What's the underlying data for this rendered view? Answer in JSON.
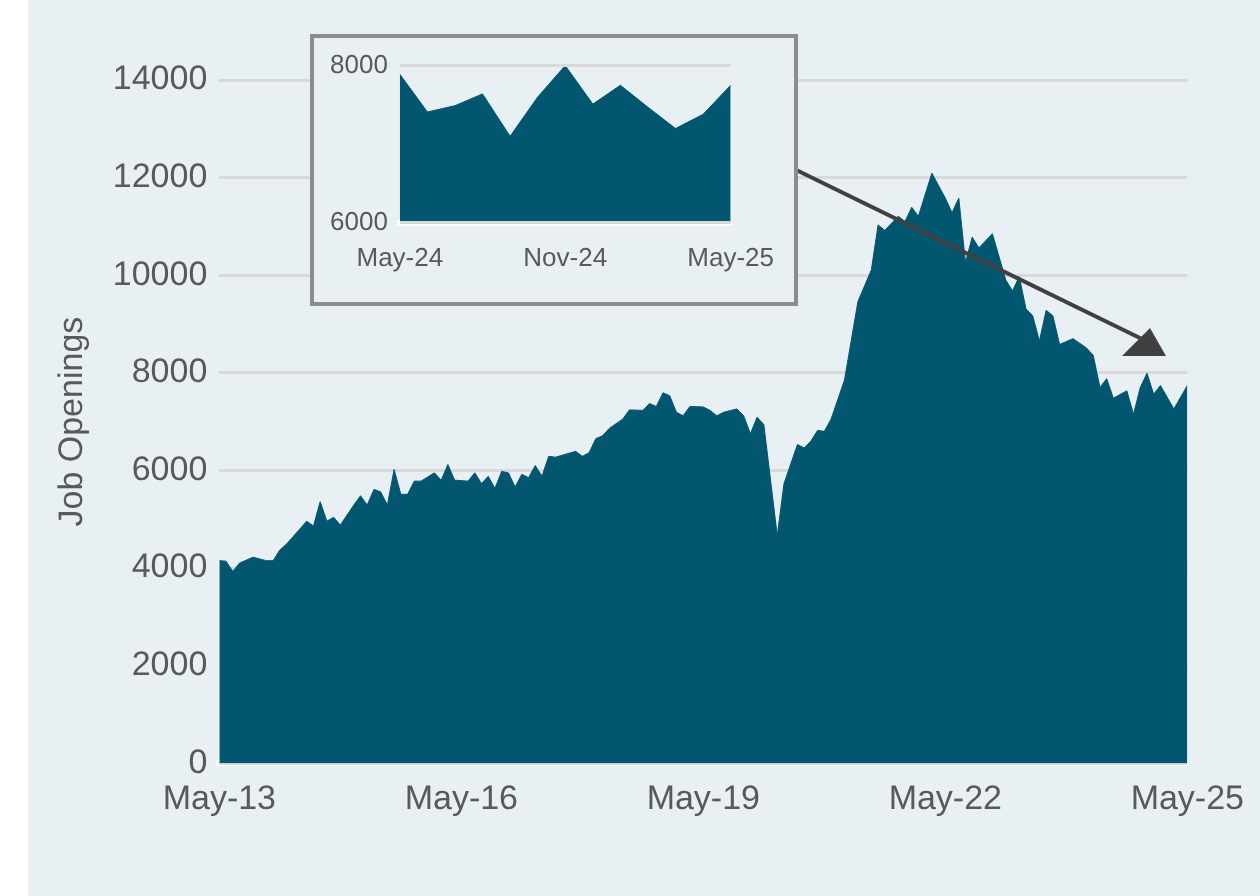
{
  "chart_data": [
    {
      "type": "area",
      "ylabel": "Job Openings",
      "color": "#03566f",
      "grid": "y",
      "xlim": [
        "2013-05",
        "2025-05"
      ],
      "ylim": [
        0,
        14000
      ],
      "xticks": [
        {
          "value": "2013-05",
          "label": "May-13"
        },
        {
          "value": "2016-05",
          "label": "May-16"
        },
        {
          "value": "2019-05",
          "label": "May-19"
        },
        {
          "value": "2022-05",
          "label": "May-22"
        },
        {
          "value": "2025-05",
          "label": "May-25"
        }
      ],
      "yticks": [
        0,
        2000,
        4000,
        6000,
        8000,
        10000,
        12000,
        14000
      ],
      "x": [
        "2013-05",
        "2013-06",
        "2013-07",
        "2013-08",
        "2013-10",
        "2013-12",
        "2014-01",
        "2014-02",
        "2014-03",
        "2014-06",
        "2014-07",
        "2014-08",
        "2014-09",
        "2014-10",
        "2014-11",
        "2015-01",
        "2015-02",
        "2015-03",
        "2015-04",
        "2015-05",
        "2015-06",
        "2015-07",
        "2015-08",
        "2015-09",
        "2015-10",
        "2015-11",
        "2016-01",
        "2016-02",
        "2016-03",
        "2016-04",
        "2016-06",
        "2016-07",
        "2016-08",
        "2016-09",
        "2016-10",
        "2016-11",
        "2016-12",
        "2017-01",
        "2017-02",
        "2017-03",
        "2017-04",
        "2017-05",
        "2017-06",
        "2017-07",
        "2017-10",
        "2017-11",
        "2017-12",
        "2018-01",
        "2018-02",
        "2018-03",
        "2018-05",
        "2018-06",
        "2018-08",
        "2018-09",
        "2018-10",
        "2018-11",
        "2018-12",
        "2019-01",
        "2019-02",
        "2019-03",
        "2019-05",
        "2019-06",
        "2019-07",
        "2019-08",
        "2019-10",
        "2019-11",
        "2019-12",
        "2020-01",
        "2020-02",
        "2020-03",
        "2020-04",
        "2020-05",
        "2020-07",
        "2020-08",
        "2020-09",
        "2020-10",
        "2020-11",
        "2020-12",
        "2021-02",
        "2021-04",
        "2021-06",
        "2021-07",
        "2021-08",
        "2021-10",
        "2021-11",
        "2021-12",
        "2022-01",
        "2022-03",
        "2022-05",
        "2022-06",
        "2022-07",
        "2022-08",
        "2022-09",
        "2022-10",
        "2022-12",
        "2023-02",
        "2023-03",
        "2023-04",
        "2023-05",
        "2023-06",
        "2023-07",
        "2023-08",
        "2023-09",
        "2023-10",
        "2023-12",
        "2024-02",
        "2024-03",
        "2024-04",
        "2024-05",
        "2024-06",
        "2024-08",
        "2024-09",
        "2024-10",
        "2024-11",
        "2024-12",
        "2025-01",
        "2025-03",
        "2025-05"
      ],
      "values": [
        4150,
        4140,
        3930,
        4100,
        4220,
        4150,
        4150,
        4370,
        4490,
        4960,
        4860,
        5360,
        4960,
        5040,
        4880,
        5290,
        5480,
        5290,
        5610,
        5560,
        5290,
        6020,
        5510,
        5510,
        5780,
        5780,
        5950,
        5800,
        6120,
        5800,
        5780,
        5950,
        5730,
        5880,
        5630,
        5980,
        5950,
        5660,
        5920,
        5850,
        6100,
        5880,
        6290,
        6270,
        6390,
        6290,
        6360,
        6650,
        6710,
        6860,
        7050,
        7240,
        7230,
        7370,
        7310,
        7590,
        7530,
        7190,
        7120,
        7310,
        7300,
        7230,
        7120,
        7190,
        7260,
        7120,
        6750,
        7090,
        6940,
        5800,
        4660,
        5730,
        6530,
        6460,
        6600,
        6820,
        6800,
        7050,
        7850,
        9460,
        10110,
        11030,
        10920,
        11210,
        11100,
        11390,
        11210,
        12090,
        11580,
        11280,
        11580,
        10260,
        10780,
        10560,
        10850,
        9900,
        9680,
        9970,
        9310,
        9170,
        8650,
        9280,
        9170,
        8580,
        8700,
        8510,
        8360,
        7700,
        7880,
        7480,
        7630,
        7150,
        7700,
        7990,
        7560,
        7740,
        7260,
        7740
      ]
    },
    {
      "type": "area",
      "color": "#03566f",
      "grid": "y",
      "xlim": [
        "2024-05",
        "2025-05"
      ],
      "ylim": [
        6000,
        8000
      ],
      "xticks": [
        {
          "value": "2024-05",
          "label": "May-24"
        },
        {
          "value": "2024-11",
          "label": "Nov-24"
        },
        {
          "value": "2025-05",
          "label": "May-25"
        }
      ],
      "yticks": [
        6000,
        8000
      ],
      "x": [
        "2024-05",
        "2024-06",
        "2024-07",
        "2024-08",
        "2024-09",
        "2024-10",
        "2024-11",
        "2024-12",
        "2025-01",
        "2025-02",
        "2025-03",
        "2025-04",
        "2025-05"
      ],
      "values": [
        7890,
        7410,
        7490,
        7640,
        7100,
        7600,
        8000,
        7510,
        7750,
        7470,
        7200,
        7380,
        7750
      ]
    }
  ]
}
